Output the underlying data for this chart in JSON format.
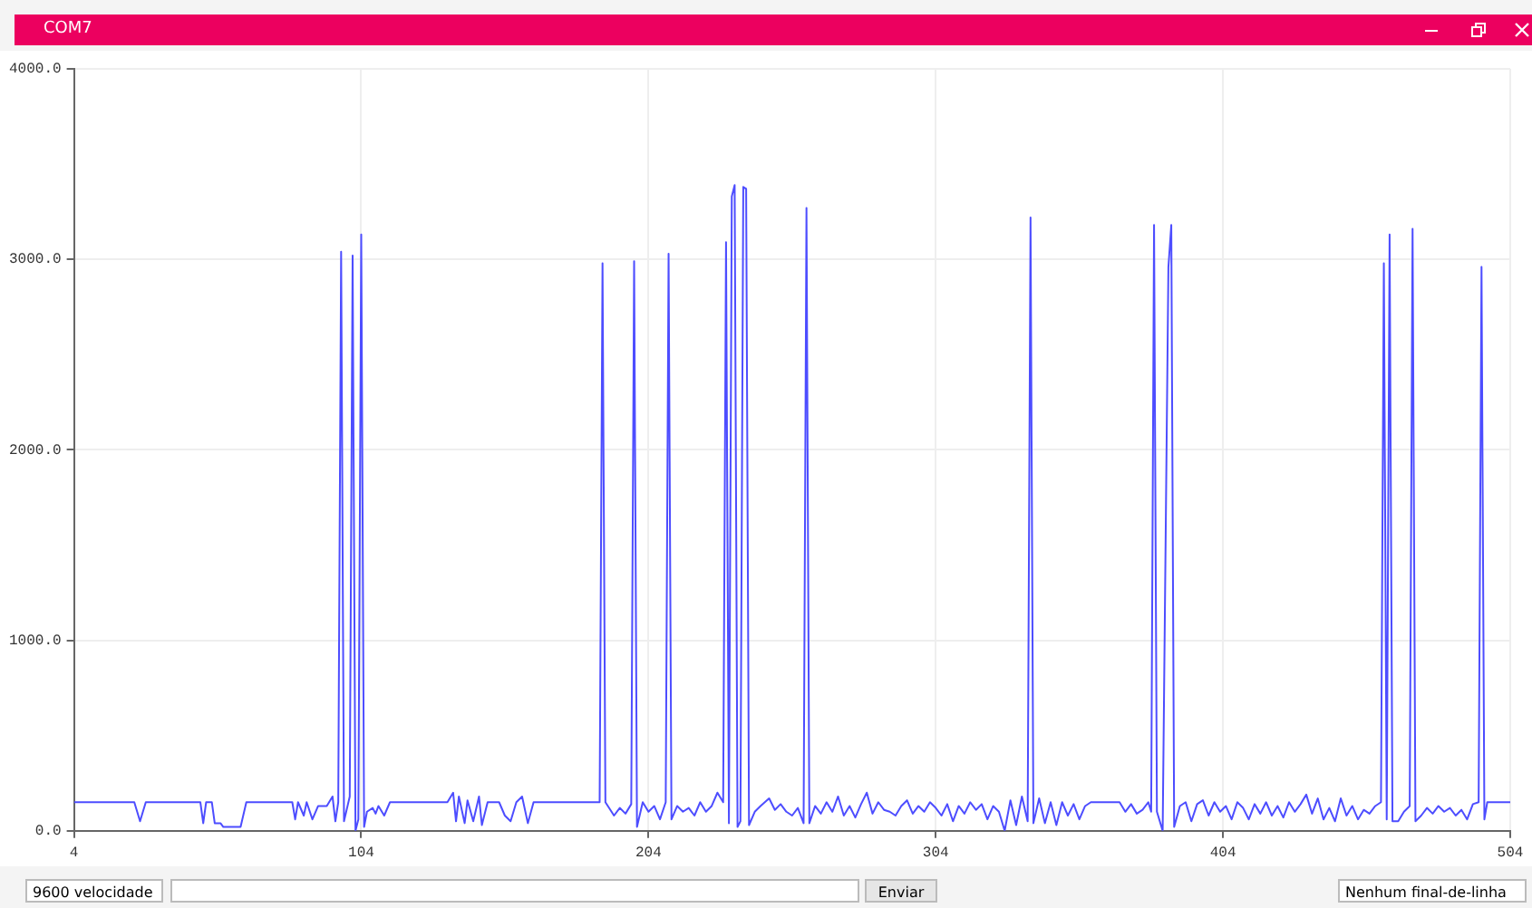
{
  "chart_data": {
    "type": "line",
    "title": "COM7",
    "annotations": [
      "9600 velocidade",
      "Enviar",
      "Nenhum final-de-linha"
    ],
    "xlim": [
      4,
      504
    ],
    "xticks": [
      4,
      104,
      204,
      304,
      404,
      504
    ],
    "ylim": [
      0,
      4000
    ],
    "yticks": [
      {
        "value": 0,
        "label": "0.0"
      },
      {
        "value": 1000,
        "label": "1000.0"
      },
      {
        "value": 2000,
        "label": "2000.0"
      },
      {
        "value": 3000,
        "label": "3000.0"
      },
      {
        "value": 4000,
        "label": "4000.0"
      }
    ],
    "grid": true,
    "series": [
      {
        "color": "#4d4dff",
        "x": [
          4,
          25,
          27,
          29,
          48,
          49,
          50,
          52,
          53,
          55,
          56,
          62,
          64,
          80,
          81,
          82,
          84,
          85,
          87,
          89,
          92,
          94,
          95,
          96,
          97,
          98,
          100,
          101,
          102,
          103,
          104,
          105,
          106,
          108,
          109,
          110,
          112,
          114,
          120,
          130,
          134,
          136,
          137,
          138,
          140,
          141,
          143,
          145,
          146,
          148,
          152,
          154,
          156,
          158,
          160,
          162,
          164,
          175,
          187,
          188,
          189,
          192,
          194,
          196,
          198,
          199,
          200,
          202,
          204,
          206,
          208,
          210,
          211,
          212,
          214,
          216,
          218,
          220,
          222,
          224,
          226,
          228,
          230,
          231,
          232,
          233,
          234,
          235,
          236,
          237,
          238,
          239,
          241,
          243,
          246,
          248,
          250,
          252,
          254,
          256,
          258,
          259,
          260,
          262,
          264,
          266,
          268,
          270,
          272,
          274,
          276,
          278,
          280,
          282,
          284,
          286,
          288,
          290,
          292,
          294,
          296,
          298,
          300,
          302,
          304,
          306,
          308,
          310,
          312,
          314,
          316,
          318,
          320,
          322,
          324,
          326,
          328,
          330,
          332,
          334,
          336,
          337,
          338,
          340,
          342,
          344,
          346,
          348,
          350,
          352,
          354,
          356,
          358,
          364,
          368,
          370,
          372,
          374,
          376,
          378,
          379,
          380,
          381,
          383,
          385,
          386,
          387,
          389,
          391,
          393,
          395,
          397,
          399,
          401,
          403,
          405,
          407,
          409,
          411,
          413,
          415,
          417,
          419,
          421,
          423,
          425,
          427,
          429,
          431,
          433,
          435,
          437,
          439,
          441,
          443,
          445,
          447,
          449,
          451,
          453,
          455,
          457,
          459,
          460,
          461,
          462,
          463,
          465,
          467,
          469,
          470,
          471,
          473,
          475,
          477,
          479,
          481,
          483,
          485,
          487,
          489,
          491,
          493,
          494,
          495,
          496,
          500,
          504
        ],
        "values": [
          150,
          150,
          50,
          150,
          150,
          40,
          150,
          150,
          40,
          40,
          20,
          20,
          150,
          150,
          60,
          150,
          80,
          150,
          60,
          130,
          130,
          180,
          50,
          150,
          3040,
          50,
          180,
          3020,
          0,
          60,
          3130,
          20,
          100,
          120,
          90,
          130,
          80,
          150,
          150,
          150,
          150,
          200,
          50,
          180,
          40,
          160,
          50,
          180,
          30,
          150,
          150,
          80,
          50,
          150,
          180,
          40,
          150,
          150,
          150,
          2980,
          150,
          80,
          120,
          90,
          140,
          2990,
          20,
          150,
          100,
          130,
          60,
          150,
          3030,
          60,
          130,
          100,
          120,
          80,
          150,
          100,
          130,
          200,
          150,
          3090,
          40,
          3330,
          3390,
          20,
          50,
          3380,
          3370,
          30,
          100,
          130,
          170,
          110,
          140,
          100,
          80,
          120,
          40,
          3270,
          40,
          130,
          90,
          150,
          100,
          180,
          80,
          130,
          70,
          140,
          200,
          90,
          150,
          110,
          100,
          80,
          130,
          160,
          90,
          130,
          100,
          150,
          120,
          80,
          140,
          50,
          130,
          90,
          150,
          110,
          140,
          60,
          130,
          100,
          0,
          160,
          30,
          180,
          50,
          3220,
          40,
          170,
          40,
          150,
          30,
          150,
          80,
          140,
          60,
          130,
          150,
          150,
          150,
          100,
          140,
          90,
          110,
          150,
          100,
          3180,
          100,
          0,
          2960,
          3180,
          20,
          130,
          150,
          50,
          140,
          160,
          80,
          150,
          100,
          130,
          60,
          150,
          120,
          60,
          140,
          90,
          150,
          80,
          130,
          70,
          150,
          100,
          140,
          190,
          90,
          170,
          60,
          120,
          50,
          170,
          80,
          130,
          60,
          110,
          90,
          130,
          150,
          2980,
          60,
          3130,
          50,
          50,
          100,
          130,
          3160,
          50,
          80,
          120,
          90,
          130,
          100,
          120,
          80,
          110,
          60,
          140,
          150,
          2960,
          60,
          150,
          150,
          150
        ]
      }
    ]
  }
}
